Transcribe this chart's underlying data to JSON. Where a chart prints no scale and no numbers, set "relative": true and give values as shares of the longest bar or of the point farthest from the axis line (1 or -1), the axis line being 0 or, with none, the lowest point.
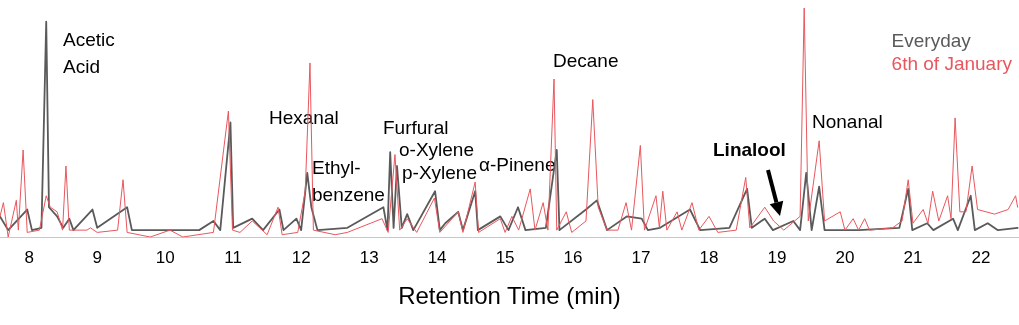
{
  "chart_data": {
    "type": "line",
    "relative": true,
    "xlabel": "Retention Time (min)",
    "xlim": [
      7.57,
      22.56
    ],
    "xticks": [
      8,
      9,
      10,
      11,
      12,
      13,
      14,
      15,
      16,
      17,
      18,
      19,
      20,
      21,
      22
    ],
    "grid": false,
    "legend": "top right",
    "marker": "none",
    "line_style": "solid",
    "series": [
      {
        "name": "Everyday",
        "color": "#5a5a5a",
        "x": [
          7.57,
          7.69,
          7.97,
          8.04,
          8.18,
          8.25,
          8.29,
          8.41,
          8.5,
          8.59,
          8.65,
          8.93,
          9.0,
          9.44,
          9.51,
          10.0,
          10.5,
          10.71,
          10.81,
          10.96,
          11.0,
          11.28,
          11.44,
          11.68,
          11.74,
          11.93,
          12.0,
          12.09,
          12.15,
          12.24,
          12.68,
          13.21,
          13.27,
          13.31,
          13.36,
          13.41,
          13.48,
          13.56,
          13.65,
          13.97,
          14.04,
          14.12,
          14.31,
          14.38,
          14.56,
          14.6,
          14.93,
          15.05,
          15.19,
          15.3,
          15.6,
          15.76,
          15.8,
          16.19,
          16.35,
          16.5,
          16.79,
          17.01,
          17.1,
          17.28,
          17.72,
          17.87,
          18.3,
          18.56,
          18.63,
          18.82,
          18.94,
          19.24,
          19.34,
          19.43,
          19.51,
          19.62,
          19.7,
          20.2,
          20.8,
          20.93,
          20.99,
          21.21,
          21.3,
          21.59,
          21.66,
          21.85,
          21.91,
          22.1,
          22.25,
          22.54
        ],
        "values": [
          0.09,
          0.03,
          0.12,
          0.03,
          0.04,
          0.94,
          0.13,
          0.09,
          0.04,
          0.08,
          0.03,
          0.12,
          0.04,
          0.13,
          0.03,
          0.03,
          0.03,
          0.07,
          0.03,
          0.5,
          0.04,
          0.08,
          0.03,
          0.12,
          0.03,
          0.08,
          0.03,
          0.28,
          0.13,
          0.03,
          0.04,
          0.13,
          0.03,
          0.37,
          0.04,
          0.31,
          0.04,
          0.1,
          0.03,
          0.2,
          0.03,
          0.06,
          0.11,
          0.03,
          0.2,
          0.03,
          0.09,
          0.03,
          0.13,
          0.03,
          0.04,
          0.38,
          0.03,
          0.12,
          0.16,
          0.03,
          0.09,
          0.08,
          0.03,
          0.04,
          0.12,
          0.03,
          0.04,
          0.21,
          0.04,
          0.08,
          0.03,
          0.07,
          0.03,
          0.28,
          0.03,
          0.22,
          0.03,
          0.03,
          0.04,
          0.21,
          0.03,
          0.06,
          0.03,
          0.08,
          0.03,
          0.18,
          0.03,
          0.06,
          0.03,
          0.04
        ]
      },
      {
        "name": "6th of January",
        "color": "#e8575e",
        "x": [
          7.57,
          7.62,
          7.69,
          7.81,
          7.84,
          7.91,
          7.97,
          8.15,
          8.25,
          8.31,
          8.41,
          8.49,
          8.54,
          8.59,
          8.85,
          8.9,
          9.0,
          9.3,
          9.38,
          9.44,
          9.78,
          10.07,
          10.26,
          10.71,
          10.93,
          10.99,
          11.1,
          11.28,
          11.5,
          11.66,
          11.72,
          11.95,
          12.06,
          12.13,
          12.18,
          12.5,
          12.68,
          13.19,
          13.28,
          13.38,
          13.45,
          13.56,
          13.7,
          13.96,
          14.04,
          14.31,
          14.38,
          14.56,
          14.61,
          14.93,
          15.0,
          15.1,
          15.2,
          15.37,
          15.44,
          15.56,
          15.63,
          15.72,
          15.76,
          15.9,
          15.98,
          16.19,
          16.29,
          16.37,
          16.5,
          16.66,
          16.78,
          16.86,
          16.99,
          17.05,
          17.22,
          17.27,
          17.32,
          17.38,
          17.53,
          17.6,
          17.75,
          17.85,
          18.0,
          18.13,
          18.4,
          18.54,
          18.6,
          18.82,
          18.95,
          19.1,
          19.34,
          19.4,
          19.46,
          19.62,
          19.7,
          19.93,
          20.0,
          20.12,
          20.2,
          20.29,
          20.36,
          20.7,
          20.84,
          20.93,
          21.0,
          21.15,
          21.22,
          21.29,
          21.38,
          21.51,
          21.56,
          21.62,
          21.69,
          21.78,
          21.87,
          21.95,
          22.2,
          22.4,
          22.51,
          22.54
        ],
        "values": [
          0.09,
          0.15,
          0.0,
          0.16,
          0.03,
          0.38,
          0.02,
          0.03,
          0.18,
          0.13,
          0.11,
          0.03,
          0.31,
          0.03,
          0.03,
          0.04,
          0.02,
          0.03,
          0.25,
          0.02,
          0.0,
          0.03,
          0.0,
          0.02,
          0.55,
          0.03,
          0.02,
          0.07,
          0.01,
          0.13,
          0.01,
          0.02,
          0.2,
          0.76,
          0.03,
          0.01,
          0.02,
          0.08,
          0.02,
          0.36,
          0.03,
          0.08,
          0.02,
          0.17,
          0.02,
          0.11,
          0.02,
          0.24,
          0.02,
          0.08,
          0.02,
          0.09,
          0.03,
          0.21,
          0.03,
          0.15,
          0.03,
          0.69,
          0.03,
          0.11,
          0.02,
          0.07,
          0.6,
          0.13,
          0.03,
          0.03,
          0.15,
          0.03,
          0.4,
          0.03,
          0.18,
          0.04,
          0.2,
          0.03,
          0.11,
          0.03,
          0.15,
          0.03,
          0.09,
          0.02,
          0.03,
          0.26,
          0.04,
          0.13,
          0.07,
          0.03,
          0.09,
          1.0,
          0.07,
          0.42,
          0.07,
          0.11,
          0.03,
          0.08,
          0.03,
          0.08,
          0.03,
          0.04,
          0.07,
          0.25,
          0.06,
          0.12,
          0.06,
          0.2,
          0.07,
          0.18,
          0.08,
          0.52,
          0.11,
          0.11,
          0.31,
          0.12,
          0.1,
          0.12,
          0.18,
          0.13
        ]
      }
    ],
    "annotations": [
      "Acetic\nAcid",
      "Hexanal",
      "Ethyl-\nbenzene",
      "Furfural",
      "o-Xylene",
      "p-Xylene",
      "α-Pinene",
      "Decane",
      "Nonanal",
      "Linalool"
    ]
  }
}
